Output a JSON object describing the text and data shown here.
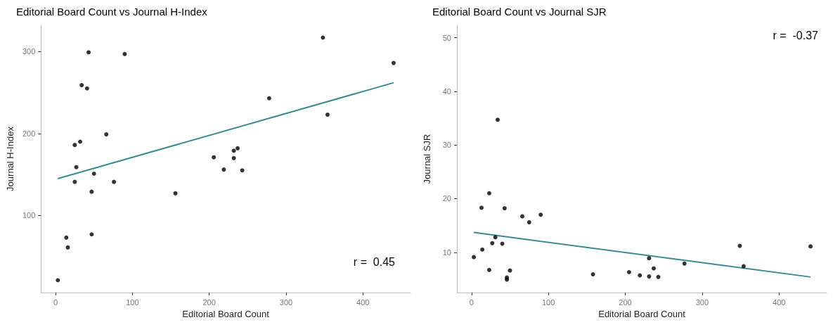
{
  "chart_data": [
    {
      "type": "scatter",
      "title": "Editorial Board Count vs Journal H-Index",
      "xlabel": "Editorial Board Count",
      "ylabel": "Journal H-Index",
      "xlim": [
        -19,
        462
      ],
      "ylim": [
        6,
        332
      ],
      "xticks": [
        0,
        100,
        200,
        300,
        400
      ],
      "yticks": [
        100,
        200,
        300
      ],
      "grid": false,
      "marker": "circle",
      "annotations": [
        "r =  0.45"
      ],
      "series": [
        {
          "color": "#000000",
          "x": [
            3,
            14,
            16,
            25,
            25,
            27,
            32,
            34,
            41,
            43,
            47,
            47,
            50,
            66,
            76,
            90,
            156,
            206,
            219,
            232,
            232,
            237,
            243,
            278,
            348,
            354,
            440
          ],
          "values": [
            21,
            73,
            61,
            186,
            141,
            159,
            190,
            259,
            255,
            299,
            129,
            77,
            151,
            199,
            141,
            297,
            127,
            171,
            156,
            179,
            170,
            182,
            155,
            243,
            317,
            223,
            286
          ]
        },
        {
          "type": "line",
          "marker": "none",
          "color": "#3a8a92",
          "x": [
            3,
            440
          ],
          "values": [
            145,
            262
          ]
        }
      ]
    },
    {
      "type": "scatter",
      "title": "Editorial Board Count vs Journal SJR",
      "xlabel": "Editorial Board Count",
      "ylabel": "Journal SJR",
      "xlim": [
        -19,
        462
      ],
      "ylim": [
        2.5,
        52.3
      ],
      "xticks": [
        0,
        100,
        200,
        300,
        400
      ],
      "yticks": [
        10,
        20,
        30,
        40,
        50
      ],
      "grid": false,
      "marker": "circle",
      "annotations": [
        "r =  -0.37"
      ],
      "series": [
        {
          "color": "#000000",
          "x": [
            3,
            13,
            14,
            23,
            23,
            27,
            31,
            34,
            40,
            43,
            46,
            46,
            50,
            66,
            75,
            90,
            158,
            205,
            219,
            231,
            231,
            237,
            243,
            277,
            349,
            354,
            441
          ],
          "values": [
            9.1,
            18.3,
            10.5,
            21.0,
            6.7,
            11.7,
            12.8,
            34.7,
            11.6,
            18.2,
            5.3,
            4.9,
            6.6,
            16.7,
            15.6,
            17.0,
            5.9,
            6.3,
            5.7,
            8.9,
            5.5,
            7.0,
            5.4,
            7.9,
            11.2,
            7.4,
            11.1
          ]
        },
        {
          "type": "line",
          "marker": "none",
          "color": "#3a8a92",
          "x": [
            3,
            441
          ],
          "values": [
            13.7,
            5.4
          ]
        }
      ]
    }
  ]
}
